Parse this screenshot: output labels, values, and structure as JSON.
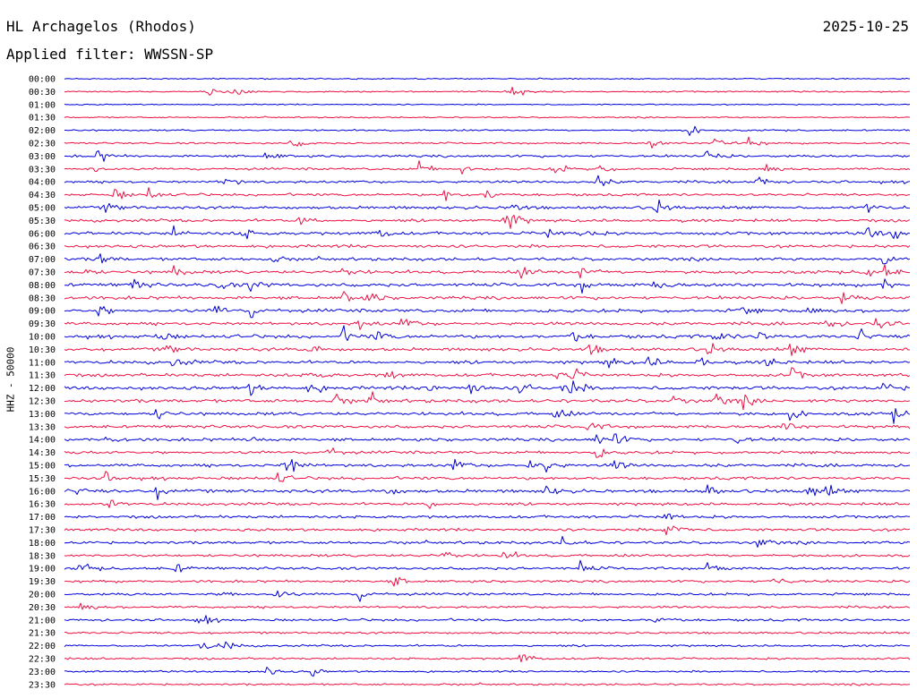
{
  "header": {
    "station": "HL Archagelos (Rhodos)",
    "date": "2025-10-25",
    "filter": "Applied filter: WWSSN-SP"
  },
  "chart_data": {
    "type": "line",
    "title": "HL Archagelos (Rhodos)",
    "ylabel": "HHZ - 50000",
    "xlabel": "",
    "grid": false,
    "colors": {
      "blue": "#0000dd",
      "red": "#ee1144"
    },
    "color_sequence": [
      "blue",
      "red"
    ],
    "rows": [
      "00:00",
      "00:30",
      "01:00",
      "01:30",
      "02:00",
      "02:30",
      "03:00",
      "03:30",
      "04:00",
      "04:30",
      "05:00",
      "05:30",
      "06:00",
      "06:30",
      "07:00",
      "07:30",
      "08:00",
      "08:30",
      "09:00",
      "09:30",
      "10:00",
      "10:30",
      "11:00",
      "11:30",
      "12:00",
      "12:30",
      "13:00",
      "13:30",
      "14:00",
      "14:30",
      "15:00",
      "15:30",
      "16:00",
      "16:30",
      "17:00",
      "17:30",
      "18:00",
      "18:30",
      "19:00",
      "19:30",
      "20:00",
      "20:30",
      "21:00",
      "21:30",
      "22:00",
      "22:30",
      "23:00",
      "23:30"
    ],
    "noise_level": [
      0.15,
      0.25,
      0.15,
      0.2,
      0.3,
      0.35,
      0.55,
      0.55,
      0.6,
      0.6,
      0.75,
      0.75,
      0.8,
      0.8,
      0.8,
      0.85,
      0.9,
      0.85,
      0.9,
      0.85,
      0.9,
      0.85,
      0.85,
      0.85,
      0.95,
      0.9,
      0.85,
      0.8,
      0.8,
      0.75,
      0.8,
      0.75,
      0.85,
      0.7,
      0.7,
      0.7,
      0.7,
      0.65,
      0.65,
      0.6,
      0.6,
      0.55,
      0.55,
      0.45,
      0.45,
      0.45,
      0.4,
      0.4
    ],
    "events": [
      {
        "row": 1,
        "x": [
          0.17,
          0.2,
          0.53
        ]
      },
      {
        "row": 4,
        "x": [
          0.74
        ]
      },
      {
        "row": 5,
        "x": [
          0.27,
          0.69,
          0.77,
          0.81
        ]
      },
      {
        "row": 6,
        "x": [
          0.04,
          0.24,
          0.76
        ]
      },
      {
        "row": 7,
        "x": [
          0.03,
          0.42,
          0.47,
          0.58,
          0.63,
          0.83
        ]
      },
      {
        "row": 8,
        "x": [
          0.19,
          0.63,
          0.82
        ]
      },
      {
        "row": 9,
        "x": [
          0.06,
          0.1,
          0.45,
          0.5
        ]
      },
      {
        "row": 10,
        "x": [
          0.05,
          0.53,
          0.7,
          0.95
        ]
      },
      {
        "row": 11,
        "x": [
          0.28,
          0.52,
          0.53
        ]
      },
      {
        "row": 12,
        "x": [
          0.13,
          0.21,
          0.37,
          0.57,
          0.61,
          0.95,
          0.98
        ]
      },
      {
        "row": 14,
        "x": [
          0.04,
          0.24,
          0.97
        ]
      },
      {
        "row": 15,
        "x": [
          0.02,
          0.13,
          0.33,
          0.54,
          0.61,
          0.95,
          0.97
        ]
      },
      {
        "row": 16,
        "x": [
          0.08,
          0.18,
          0.22,
          0.61,
          0.7,
          0.97
        ]
      },
      {
        "row": 17,
        "x": [
          0.33,
          0.36,
          0.92
        ]
      },
      {
        "row": 18,
        "x": [
          0.04,
          0.18,
          0.22,
          0.8,
          0.88
        ]
      },
      {
        "row": 19,
        "x": [
          0.35,
          0.4,
          0.9,
          0.96
        ]
      },
      {
        "row": 20,
        "x": [
          0.11,
          0.33,
          0.37,
          0.6,
          0.77,
          0.82,
          0.94
        ]
      },
      {
        "row": 21,
        "x": [
          0.12,
          0.29,
          0.62,
          0.76,
          0.86
        ]
      },
      {
        "row": 22,
        "x": [
          0.13,
          0.64,
          0.69,
          0.75,
          0.83
        ]
      },
      {
        "row": 23,
        "x": [
          0.29,
          0.38,
          0.58,
          0.6,
          0.86
        ]
      },
      {
        "row": 24,
        "x": [
          0.22,
          0.29,
          0.43,
          0.48,
          0.54,
          0.59,
          0.6,
          0.97
        ]
      },
      {
        "row": 25,
        "x": [
          0.32,
          0.36,
          0.72,
          0.77,
          0.8
        ]
      },
      {
        "row": 26,
        "x": [
          0.11,
          0.58,
          0.86,
          0.98
        ]
      },
      {
        "row": 27,
        "x": [
          0.62,
          0.85
        ]
      },
      {
        "row": 28,
        "x": [
          0.05,
          0.22,
          0.63,
          0.65,
          0.79
        ]
      },
      {
        "row": 29,
        "x": [
          0.31,
          0.63
        ]
      },
      {
        "row": 30,
        "x": [
          0.26,
          0.27,
          0.46,
          0.55,
          0.57,
          0.65
        ]
      },
      {
        "row": 31,
        "x": [
          0.05,
          0.25
        ]
      },
      {
        "row": 32,
        "x": [
          0.01,
          0.11,
          0.38,
          0.57,
          0.76,
          0.88,
          0.9
        ]
      },
      {
        "row": 33,
        "x": [
          0.05,
          0.43
        ]
      },
      {
        "row": 34,
        "x": [
          0.71
        ]
      },
      {
        "row": 35,
        "x": [
          0.71,
          0.72
        ]
      },
      {
        "row": 36,
        "x": [
          0.59,
          0.82
        ]
      },
      {
        "row": 37,
        "x": [
          0.45,
          0.52
        ]
      },
      {
        "row": 38,
        "x": [
          0.02,
          0.13,
          0.61,
          0.76
        ]
      },
      {
        "row": 39,
        "x": [
          0.39,
          0.84
        ]
      },
      {
        "row": 40,
        "x": [
          0.19,
          0.25,
          0.35
        ]
      },
      {
        "row": 41,
        "x": [
          0.02
        ]
      },
      {
        "row": 42,
        "x": [
          0.16,
          0.7
        ]
      },
      {
        "row": 44,
        "x": [
          0.16,
          0.19
        ]
      },
      {
        "row": 45,
        "x": [
          0.54
        ]
      },
      {
        "row": 46,
        "x": [
          0.24,
          0.29
        ]
      }
    ]
  }
}
